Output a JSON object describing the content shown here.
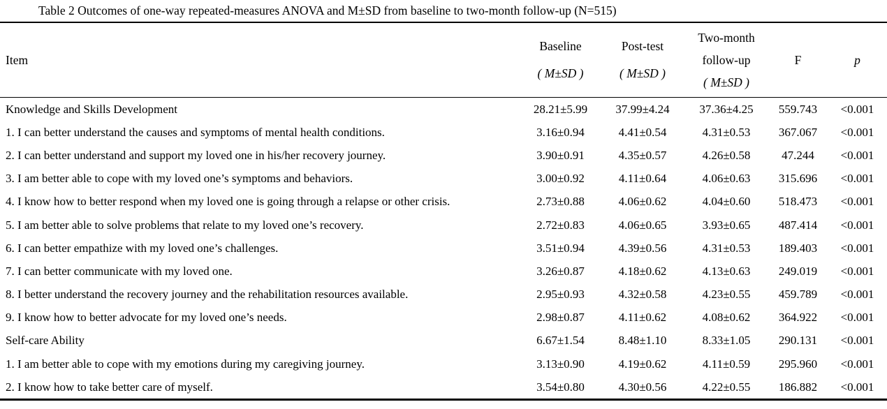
{
  "title": "Table 2 Outcomes of one-way repeated-measures ANOVA and M±SD from baseline to two-month follow-up (N=515)",
  "header": {
    "item_label": "Item",
    "baseline_lines": [
      "Baseline",
      "( M±SD )"
    ],
    "posttest_lines": [
      "Post-test",
      "( M±SD )"
    ],
    "followup_lines": [
      "Two-month",
      "follow-up",
      "( M±SD )"
    ],
    "f_label": "F",
    "p_label": "p"
  },
  "rows": [
    {
      "is_section": true,
      "item": "Knowledge and Skills Development",
      "baseline": "28.21±5.99",
      "posttest": "37.99±4.24",
      "followup": "37.36±4.25",
      "f": "559.743",
      "p": "<0.001"
    },
    {
      "is_section": false,
      "item": "1. I can better understand the causes and symptoms of mental health conditions.",
      "baseline": "3.16±0.94",
      "posttest": "4.41±0.54",
      "followup": "4.31±0.53",
      "f": "367.067",
      "p": "<0.001"
    },
    {
      "is_section": false,
      "item": "2. I can better understand and support my loved one in his/her recovery journey.",
      "baseline": "3.90±0.91",
      "posttest": "4.35±0.57",
      "followup": "4.26±0.58",
      "f": "47.244",
      "p": "<0.001"
    },
    {
      "is_section": false,
      "item": "3. I am better able to cope with my loved one’s symptoms and behaviors.",
      "baseline": "3.00±0.92",
      "posttest": "4.11±0.64",
      "followup": "4.06±0.63",
      "f": "315.696",
      "p": "<0.001"
    },
    {
      "is_section": false,
      "item": "4. I know how to better respond when my loved one is going through a relapse or other crisis.",
      "baseline": "2.73±0.88",
      "posttest": "4.06±0.62",
      "followup": "4.04±0.60",
      "f": "518.473",
      "p": "<0.001"
    },
    {
      "is_section": false,
      "item": "5. I am better able to solve problems that relate to my loved one’s recovery.",
      "baseline": "2.72±0.83",
      "posttest": "4.06±0.65",
      "followup": "3.93±0.65",
      "f": "487.414",
      "p": "<0.001"
    },
    {
      "is_section": false,
      "item": "6. I can better empathize with my loved one’s challenges.",
      "baseline": "3.51±0.94",
      "posttest": "4.39±0.56",
      "followup": "4.31±0.53",
      "f": "189.403",
      "p": "<0.001"
    },
    {
      "is_section": false,
      "item": "7. I can better communicate with my loved one.",
      "baseline": "3.26±0.87",
      "posttest": "4.18±0.62",
      "followup": "4.13±0.63",
      "f": "249.019",
      "p": "<0.001"
    },
    {
      "is_section": false,
      "item": "8. I better understand the recovery journey and the rehabilitation resources available.",
      "baseline": "2.95±0.93",
      "posttest": "4.32±0.58",
      "followup": "4.23±0.55",
      "f": "459.789",
      "p": "<0.001"
    },
    {
      "is_section": false,
      "item": "9. I know how to better advocate for my loved one’s needs.",
      "baseline": "2.98±0.87",
      "posttest": "4.11±0.62",
      "followup": "4.08±0.62",
      "f": "364.922",
      "p": "<0.001"
    },
    {
      "is_section": true,
      "item": "Self-care Ability",
      "baseline": "6.67±1.54",
      "posttest": "8.48±1.10",
      "followup": "8.33±1.05",
      "f": "290.131",
      "p": "<0.001"
    },
    {
      "is_section": false,
      "item": "1. I am better able to cope with my emotions during my caregiving journey.",
      "baseline": "3.13±0.90",
      "posttest": "4.19±0.62",
      "followup": "4.11±0.59",
      "f": "295.960",
      "p": "<0.001"
    },
    {
      "is_section": false,
      "item": "2. I know how to take better care of myself.",
      "baseline": "3.54±0.80",
      "posttest": "4.30±0.56",
      "followup": "4.22±0.55",
      "f": "186.882",
      "p": "<0.001"
    }
  ]
}
